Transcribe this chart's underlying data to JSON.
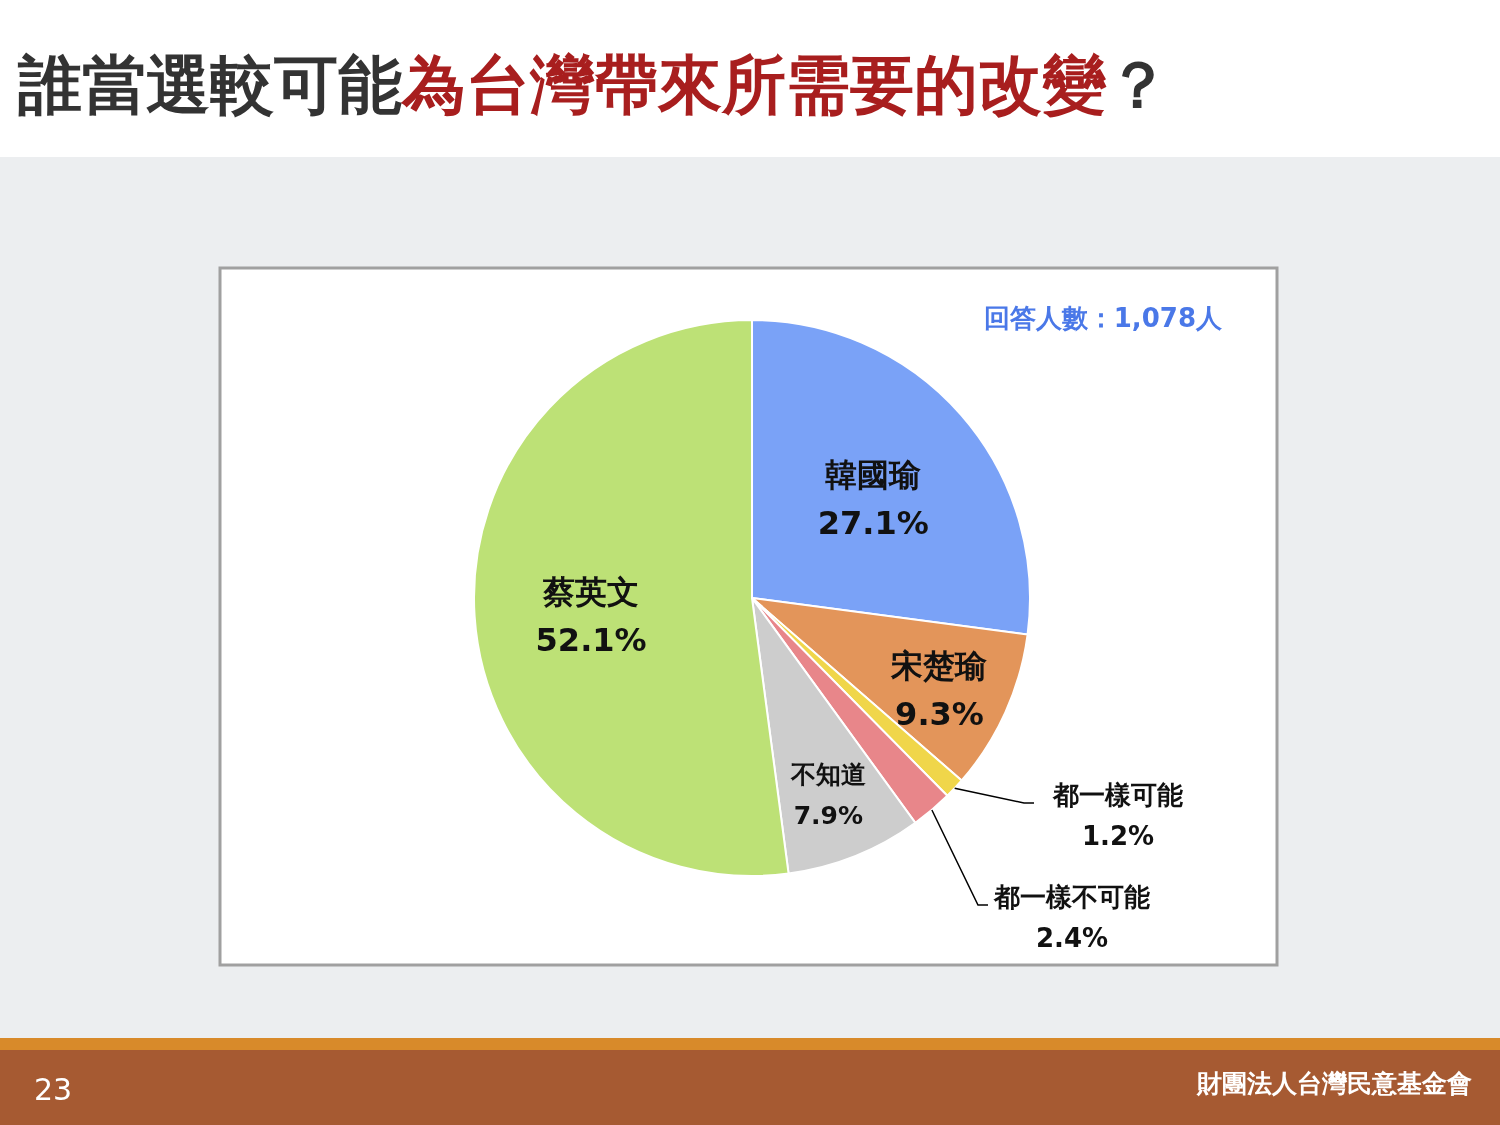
{
  "chart_data": {
    "type": "pie",
    "title": "誰當選較可能為台灣帶來所需要的改變？",
    "categories": [
      "韓國瑜",
      "宋楚瑜",
      "都一樣可能",
      "都一樣不可能",
      "不知道",
      "蔡英文"
    ],
    "values": [
      27.1,
      9.3,
      1.2,
      2.4,
      7.9,
      52.1
    ],
    "value_labels": [
      "27.1%",
      "9.3%",
      "1.2%",
      "2.4%",
      "7.9%",
      "52.1%"
    ],
    "colors": [
      "#7aa2f7",
      "#e3955a",
      "#f0d64a",
      "#e8868a",
      "#cdcdcd",
      "#bde176"
    ],
    "annotations": [
      "回答人數：1,078人",
      "23",
      "財團法人台灣民意基金會"
    ]
  }
}
